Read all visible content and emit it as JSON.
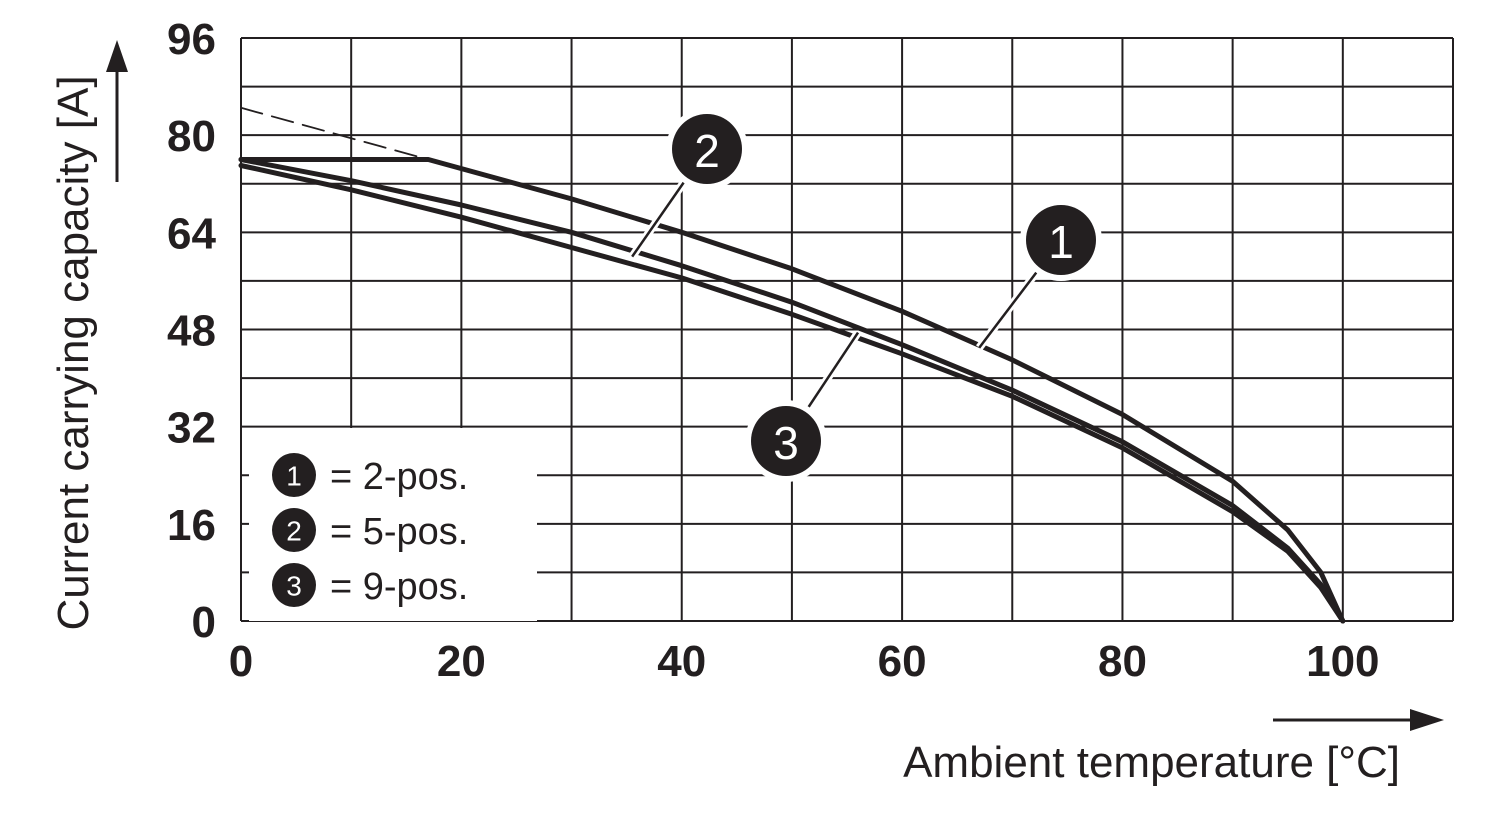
{
  "chart_data": {
    "type": "line",
    "title": "",
    "xlabel": "Ambient temperature [°C]",
    "ylabel": "Current carrying capacity [A]",
    "xlim": [
      0,
      110
    ],
    "ylim": [
      0,
      96
    ],
    "x_ticks": [
      0,
      20,
      40,
      60,
      80,
      100
    ],
    "y_ticks": [
      0,
      16,
      32,
      48,
      64,
      80,
      96
    ],
    "grid": true,
    "legend_position": "bottom-left",
    "series": [
      {
        "name": "2-pos.",
        "marker": "1",
        "style": "solid",
        "points": [
          [
            0,
            76
          ],
          [
            17,
            76
          ],
          [
            30,
            69.5
          ],
          [
            40,
            64
          ],
          [
            50,
            58
          ],
          [
            60,
            51
          ],
          [
            70,
            43
          ],
          [
            80,
            34
          ],
          [
            90,
            23
          ],
          [
            95,
            15
          ],
          [
            98,
            8
          ],
          [
            100,
            0
          ]
        ]
      },
      {
        "name": "2-pos. (extrapolated)",
        "marker": "",
        "style": "dashed",
        "points": [
          [
            0,
            84.5
          ],
          [
            17,
            76
          ]
        ]
      },
      {
        "name": "5-pos.",
        "marker": "2",
        "style": "solid",
        "points": [
          [
            0,
            76
          ],
          [
            10,
            72.5
          ],
          [
            20,
            68.5
          ],
          [
            30,
            64
          ],
          [
            40,
            58.5
          ],
          [
            50,
            52.5
          ],
          [
            60,
            45.5
          ],
          [
            70,
            38
          ],
          [
            80,
            29.5
          ],
          [
            90,
            19
          ],
          [
            95,
            12
          ],
          [
            98,
            6
          ],
          [
            100,
            0
          ]
        ]
      },
      {
        "name": "9-pos.",
        "marker": "3",
        "style": "solid",
        "points": [
          [
            0,
            75
          ],
          [
            10,
            71
          ],
          [
            20,
            66.5
          ],
          [
            30,
            61.5
          ],
          [
            40,
            56.5
          ],
          [
            50,
            50.5
          ],
          [
            60,
            44
          ],
          [
            70,
            37
          ],
          [
            80,
            28.5
          ],
          [
            90,
            18
          ],
          [
            95,
            11.5
          ],
          [
            98,
            5.5
          ],
          [
            100,
            0
          ]
        ]
      }
    ],
    "callouts": [
      {
        "label": "1",
        "target": [
          67,
          45
        ]
      },
      {
        "label": "2",
        "target": [
          35.5,
          60
        ]
      },
      {
        "label": "3",
        "target": [
          56,
          47.5
        ]
      }
    ],
    "legend": [
      {
        "marker": "1",
        "text": "= 2-pos."
      },
      {
        "marker": "2",
        "text": "= 5-pos."
      },
      {
        "marker": "3",
        "text": "= 9-pos."
      }
    ]
  },
  "colors": {
    "ink": "#231f20",
    "background": "#ffffff"
  }
}
